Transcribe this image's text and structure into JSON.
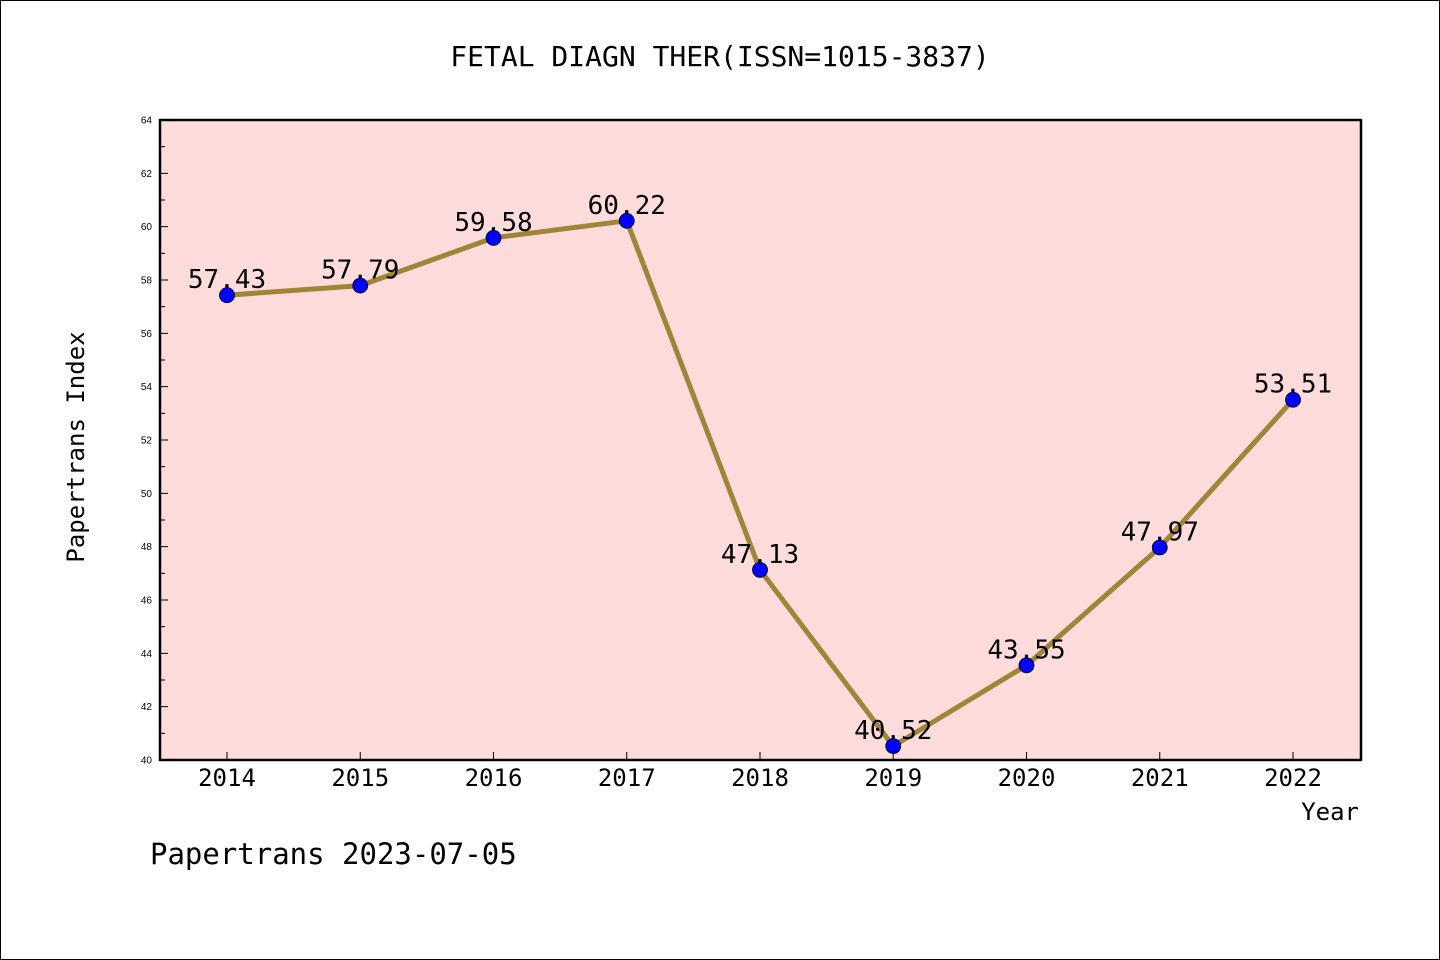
{
  "chart_data": {
    "type": "line",
    "title": "FETAL DIAGN THER(ISSN=1015-3837)",
    "xlabel": "Year",
    "ylabel": "Papertrans Index",
    "categories": [
      "2014",
      "2015",
      "2016",
      "2017",
      "2018",
      "2019",
      "2020",
      "2021",
      "2022"
    ],
    "series": [
      {
        "values": [
          57.43,
          57.79,
          59.58,
          60.22,
          47.13,
          40.52,
          43.55,
          47.97,
          53.51
        ],
        "labels": [
          "57.43",
          "57.79",
          "59.58",
          "60.22",
          "47.13",
          "40.52",
          "43.55",
          "47.97",
          "53.51"
        ]
      }
    ],
    "yticks": [
      "40",
      "42",
      "44",
      "46",
      "48",
      "50",
      "52",
      "54",
      "56",
      "58",
      "60",
      "62",
      "64"
    ],
    "ylim": [
      40,
      64
    ],
    "grid": false,
    "colors": {
      "plot_background": "#ffdcdc",
      "line": "#a08438",
      "marker": "#0000ff"
    }
  },
  "footer": {
    "text": "Papertrans 2023-07-05"
  }
}
